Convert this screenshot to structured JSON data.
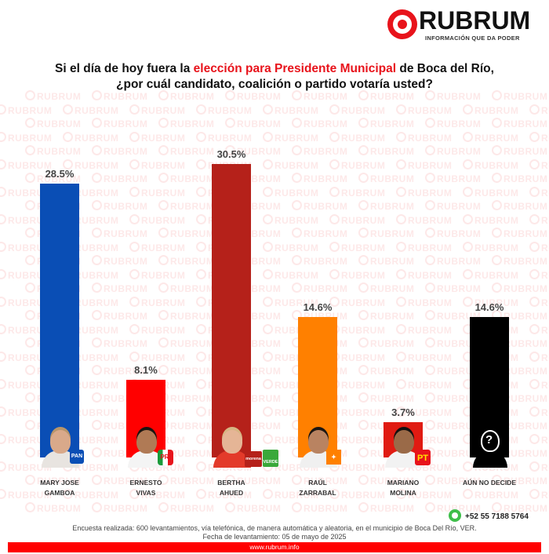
{
  "brand": {
    "name": "RUBRUM",
    "tagline": "INFORMACIÓN QUE DA PODER",
    "color": "#e8131b"
  },
  "title": {
    "line1_pre": "Si el día de hoy fuera la ",
    "line1_highlight": "elección para Presidente Municipal",
    "line1_post": " de Boca del Río,",
    "line2": "¿por cuál candidato, coalición o partido votaría usted?"
  },
  "watermark_text": "RUBRUM",
  "candidates": [
    {
      "name_line1": "MARY JOSE",
      "name_line2": "GAMBOA",
      "value_label": "28.5%",
      "color": "#0a4eb5",
      "party": "PAN",
      "party_icon": "pan-logo-icon"
    },
    {
      "name_line1": "ERNESTO",
      "name_line2": "VIVAS",
      "value_label": "8.1%",
      "color": "#ff0000",
      "party": "PRI",
      "party_icon": "pri-logo-icon"
    },
    {
      "name_line1": "BERTHA",
      "name_line2": "AHUED",
      "value_label": "30.5%",
      "color": "#b5211a",
      "party": "morena / VERDE",
      "party_icon": "morena-verde-logo-icon"
    },
    {
      "name_line1": "RAÚL",
      "name_line2": "ZARRABAL",
      "value_label": "14.6%",
      "color": "#ff8000",
      "party": "Movimiento Ciudadano",
      "party_icon": "mc-logo-icon"
    },
    {
      "name_line1": "MARIANO",
      "name_line2": "MOLINA",
      "value_label": "3.7%",
      "color": "#e01b12",
      "party": "PT",
      "party_icon": "pt-logo-icon"
    },
    {
      "name_line1": "AÚN NO DECIDE",
      "name_line2": "",
      "value_label": "14.6%",
      "color": "#000000",
      "party": "",
      "party_icon": "unknown-person-icon"
    }
  ],
  "chart_data": {
    "type": "bar",
    "title": "Si el día de hoy fuera la elección para Presidente Municipal de Boca del Río, ¿por cuál candidato, coalición o partido votaría usted?",
    "categories": [
      "MARY JOSE GAMBOA",
      "ERNESTO VIVAS",
      "BERTHA AHUED",
      "RAÚL ZARRABAL",
      "MARIANO MOLINA",
      "AÚN NO DECIDE"
    ],
    "values": [
      28.5,
      8.1,
      30.5,
      14.6,
      3.7,
      14.6
    ],
    "colors": [
      "#0a4eb5",
      "#ff0000",
      "#b5211a",
      "#ff8000",
      "#e01b12",
      "#000000"
    ],
    "xlabel": "",
    "ylabel": "",
    "ylim": [
      0,
      35
    ],
    "grid": false,
    "legend": "none",
    "data_labels": true,
    "unit": "%"
  },
  "contact": {
    "phone": "+52 55 7188 5764",
    "phone_icon": "whatsapp-icon"
  },
  "footer": {
    "methodology": "Encuesta realizada: 600 levantamientos, vía telefónica, de manera automática y aleatoria, en el municipio de Boca Del Río, VER.",
    "date": "Fecha de levantamiento: 05 de mayo de 2025",
    "website": "www.rubrum.info"
  }
}
